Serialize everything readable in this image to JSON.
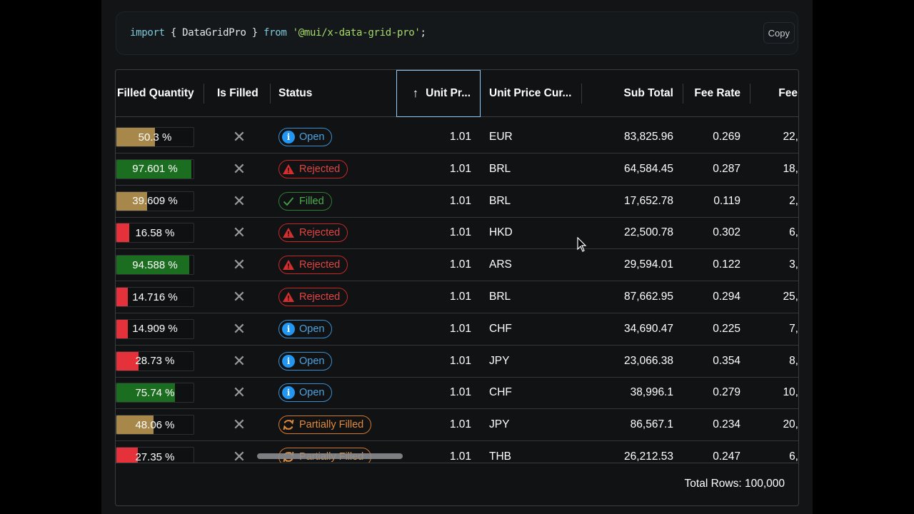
{
  "code": {
    "keyword_import": "import",
    "brace_open": " { ",
    "identifier": "DataGridPro",
    "brace_close": " } ",
    "keyword_from": "from",
    "string": "'@mui/x-data-grid-pro'",
    "semicolon": ";",
    "copy_label": "Copy"
  },
  "grid": {
    "columns": [
      {
        "key": "filled_quantity",
        "label": "Filled Quantity"
      },
      {
        "key": "is_filled",
        "label": "Is Filled"
      },
      {
        "key": "status",
        "label": "Status"
      },
      {
        "key": "unit_price",
        "label": "Unit Pr...",
        "sort": "ascending",
        "sort_icon": "arrow-up-icon"
      },
      {
        "key": "unit_price_currency",
        "label": "Unit Price Cur..."
      },
      {
        "key": "sub_total",
        "label": "Sub Total"
      },
      {
        "key": "fee_rate",
        "label": "Fee Rate"
      },
      {
        "key": "fee",
        "label": "Fee"
      }
    ],
    "rows": [
      {
        "filled_quantity": "50.3 %",
        "pct": 50.3,
        "is_filled": "✕",
        "status": "Open",
        "unit_price": "1.01",
        "currency": "EUR",
        "sub_total": "83,825.96",
        "fee_rate": "0.269",
        "fee": "22,"
      },
      {
        "filled_quantity": "97.601 %",
        "pct": 97.601,
        "is_filled": "✕",
        "status": "Rejected",
        "unit_price": "1.01",
        "currency": "BRL",
        "sub_total": "64,584.45",
        "fee_rate": "0.287",
        "fee": "18,"
      },
      {
        "filled_quantity": "39.609 %",
        "pct": 39.609,
        "is_filled": "✕",
        "status": "Filled",
        "unit_price": "1.01",
        "currency": "BRL",
        "sub_total": "17,652.78",
        "fee_rate": "0.119",
        "fee": "2,"
      },
      {
        "filled_quantity": "16.58 %",
        "pct": 16.58,
        "is_filled": "✕",
        "status": "Rejected",
        "unit_price": "1.01",
        "currency": "HKD",
        "sub_total": "22,500.78",
        "fee_rate": "0.302",
        "fee": "6,"
      },
      {
        "filled_quantity": "94.588 %",
        "pct": 94.588,
        "is_filled": "✕",
        "status": "Rejected",
        "unit_price": "1.01",
        "currency": "ARS",
        "sub_total": "29,594.01",
        "fee_rate": "0.122",
        "fee": "3,"
      },
      {
        "filled_quantity": "14.716 %",
        "pct": 14.716,
        "is_filled": "✕",
        "status": "Rejected",
        "unit_price": "1.01",
        "currency": "BRL",
        "sub_total": "87,662.95",
        "fee_rate": "0.294",
        "fee": "25,"
      },
      {
        "filled_quantity": "14.909 %",
        "pct": 14.909,
        "is_filled": "✕",
        "status": "Open",
        "unit_price": "1.01",
        "currency": "CHF",
        "sub_total": "34,690.47",
        "fee_rate": "0.225",
        "fee": "7,"
      },
      {
        "filled_quantity": "28.73 %",
        "pct": 28.73,
        "is_filled": "✕",
        "status": "Open",
        "unit_price": "1.01",
        "currency": "JPY",
        "sub_total": "23,066.38",
        "fee_rate": "0.354",
        "fee": "8,"
      },
      {
        "filled_quantity": "75.74 %",
        "pct": 75.74,
        "is_filled": "✕",
        "status": "Open",
        "unit_price": "1.01",
        "currency": "CHF",
        "sub_total": "38,996.1",
        "fee_rate": "0.279",
        "fee": "10,"
      },
      {
        "filled_quantity": "48.06 %",
        "pct": 48.06,
        "is_filled": "✕",
        "status": "Partially Filled",
        "unit_price": "1.01",
        "currency": "JPY",
        "sub_total": "86,567.1",
        "fee_rate": "0.234",
        "fee": "20,"
      },
      {
        "filled_quantity": "27.35 %",
        "pct": 27.35,
        "is_filled": "✕",
        "status": "Partially Filled",
        "unit_price": "1.01",
        "currency": "THB",
        "sub_total": "26,212.53",
        "fee_rate": "0.247",
        "fee": "6,"
      }
    ],
    "footer": {
      "total_rows": "Total Rows: 100,000"
    }
  },
  "colors": {
    "progress_low": "#e5323a",
    "progress_mid": "#a8884a",
    "progress_high": "#1b6e1f",
    "status_open": "#2196f3",
    "status_rejected": "#d32f2f",
    "status_filled": "#43a047",
    "status_partial": "#e08a3c",
    "focus_outline": "#90caf9"
  }
}
